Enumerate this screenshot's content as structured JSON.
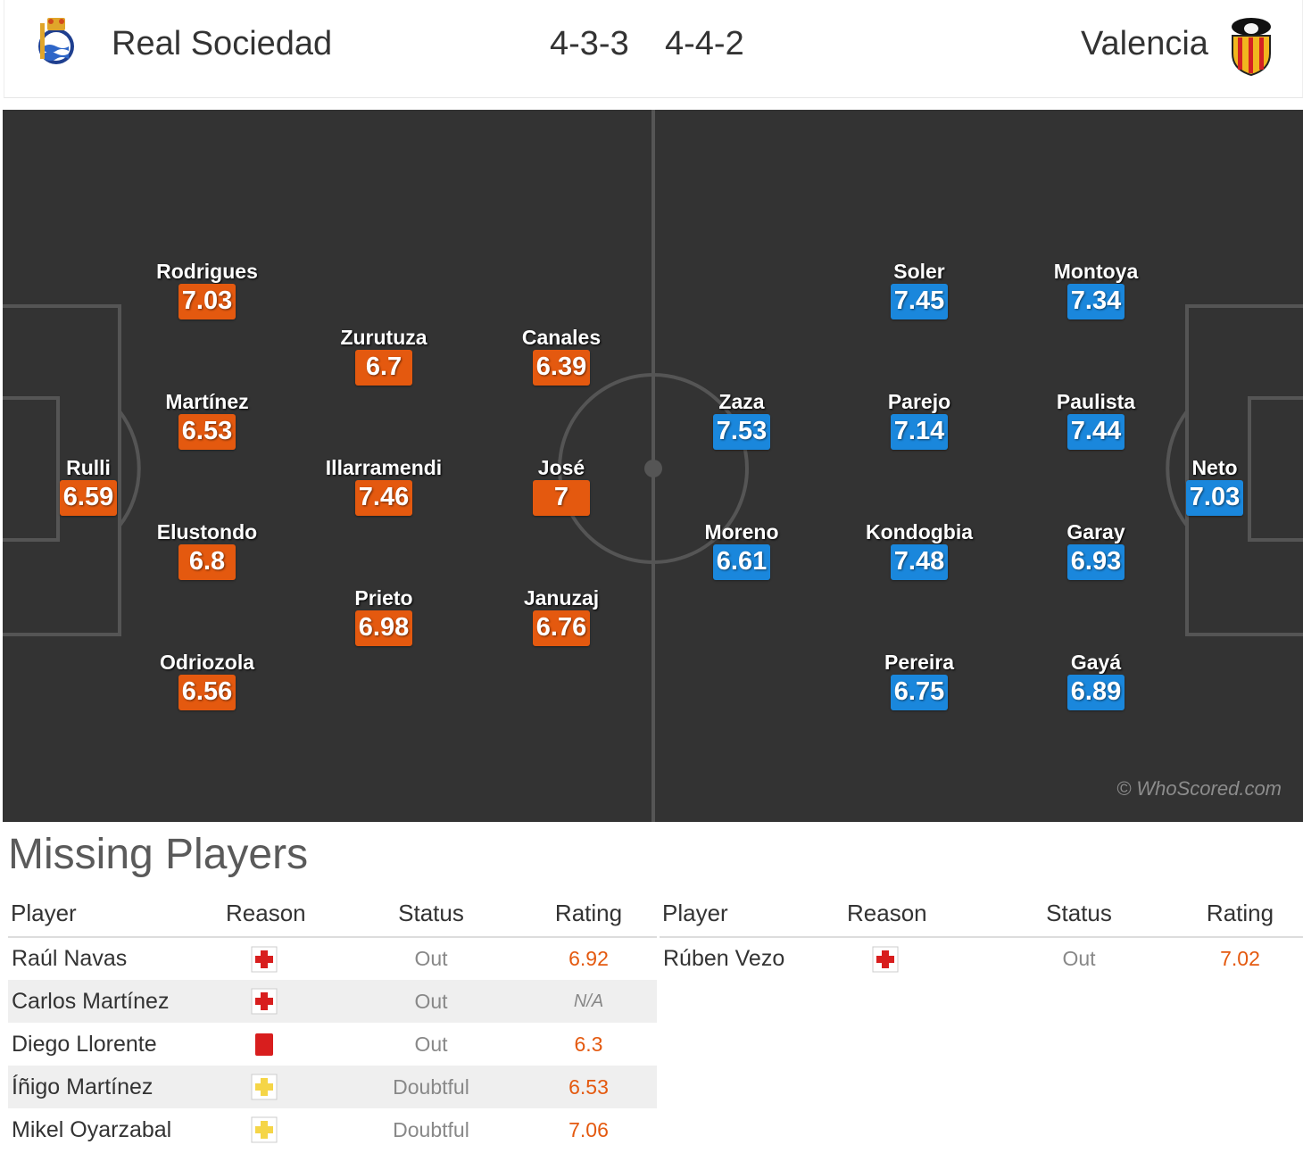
{
  "header": {
    "home_team": "Real Sociedad",
    "home_formation": "4-3-3",
    "away_formation": "4-4-2",
    "away_team": "Valencia"
  },
  "colors": {
    "home": "#e4590f",
    "away": "#1a87dc",
    "pitch": "#333333"
  },
  "pitch": {
    "watermark": "© WhoScored.com",
    "home_players": [
      {
        "name": "Rulli",
        "rating": "6.59"
      },
      {
        "name": "Rodrigues",
        "rating": "7.03"
      },
      {
        "name": "Martínez",
        "rating": "6.53"
      },
      {
        "name": "Elustondo",
        "rating": "6.8"
      },
      {
        "name": "Odriozola",
        "rating": "6.56"
      },
      {
        "name": "Zurutuza",
        "rating": "6.7"
      },
      {
        "name": "Illarramendi",
        "rating": "7.46"
      },
      {
        "name": "Prieto",
        "rating": "6.98"
      },
      {
        "name": "Canales",
        "rating": "6.39"
      },
      {
        "name": "José",
        "rating": "7"
      },
      {
        "name": "Januzaj",
        "rating": "6.76"
      }
    ],
    "away_players": [
      {
        "name": "Zaza",
        "rating": "7.53"
      },
      {
        "name": "Moreno",
        "rating": "6.61"
      },
      {
        "name": "Soler",
        "rating": "7.45"
      },
      {
        "name": "Parejo",
        "rating": "7.14"
      },
      {
        "name": "Kondogbia",
        "rating": "7.48"
      },
      {
        "name": "Pereira",
        "rating": "6.75"
      },
      {
        "name": "Montoya",
        "rating": "7.34"
      },
      {
        "name": "Paulista",
        "rating": "7.44"
      },
      {
        "name": "Garay",
        "rating": "6.93"
      },
      {
        "name": "Gayá",
        "rating": "6.89"
      },
      {
        "name": "Neto",
        "rating": "7.03"
      }
    ]
  },
  "missing": {
    "title": "Missing Players",
    "headers": {
      "player": "Player",
      "reason": "Reason",
      "status": "Status",
      "rating": "Rating"
    },
    "home": [
      {
        "player": "Raúl Navas",
        "reason": "injury-icon",
        "status": "Out",
        "rating": "6.92"
      },
      {
        "player": "Carlos Martínez",
        "reason": "injury-icon",
        "status": "Out",
        "rating": "N/A"
      },
      {
        "player": "Diego Llorente",
        "reason": "red-card-icon",
        "status": "Out",
        "rating": "6.3"
      },
      {
        "player": "Íñigo Martínez",
        "reason": "doubtful-injury-icon",
        "status": "Doubtful",
        "rating": "6.53"
      },
      {
        "player": "Mikel Oyarzabal",
        "reason": "doubtful-injury-icon",
        "status": "Doubtful",
        "rating": "7.06"
      }
    ],
    "away": [
      {
        "player": "Rúben Vezo",
        "reason": "injury-icon",
        "status": "Out",
        "rating": "7.02"
      }
    ]
  }
}
